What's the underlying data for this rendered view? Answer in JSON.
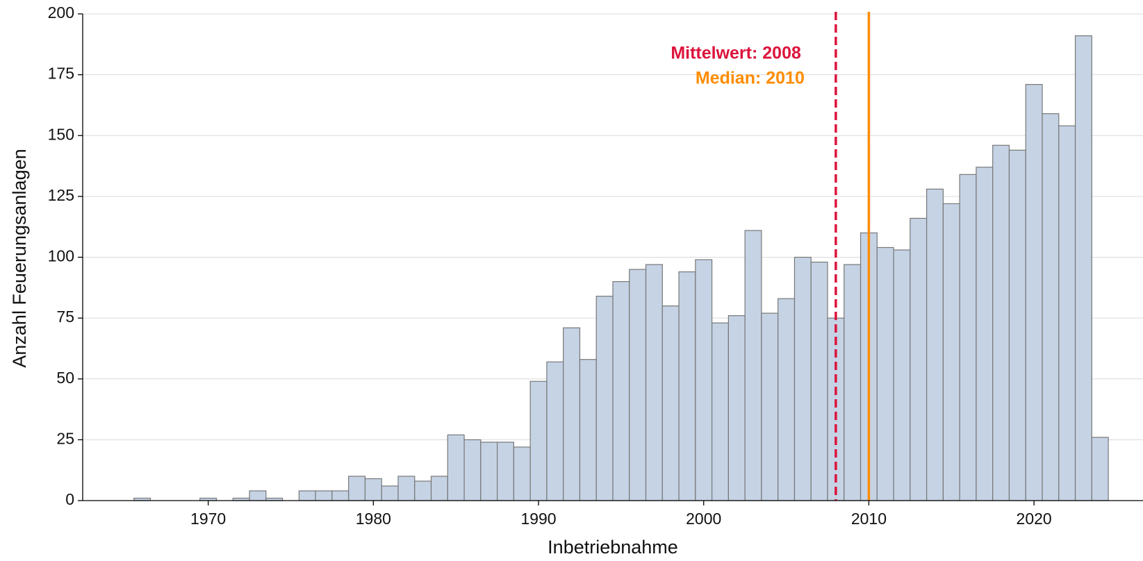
{
  "chart_data": {
    "type": "histogram",
    "xlabel": "Inbetriebnahme",
    "ylabel": "Anzahl Feuerungsanlagen",
    "bins": [
      1965.5,
      1966.5,
      1967.5,
      1968.5,
      1969.5,
      1970.5,
      1971.5,
      1972.5,
      1973.5,
      1974.5,
      1975.5,
      1976.5,
      1977.5,
      1978.5,
      1979.5,
      1980.5,
      1981.5,
      1982.5,
      1983.5,
      1984.5,
      1985.5,
      1986.5,
      1987.5,
      1988.5,
      1989.5,
      1990.5,
      1991.5,
      1992.5,
      1993.5,
      1994.5,
      1995.5,
      1996.5,
      1997.5,
      1998.5,
      1999.5,
      2000.5,
      2001.5,
      2002.5,
      2003.5,
      2004.5,
      2005.5,
      2006.5,
      2007.5,
      2008.5,
      2009.5,
      2010.5,
      2011.5,
      2012.5,
      2013.5,
      2014.5,
      2015.5,
      2016.5,
      2017.5,
      2018.5,
      2019.5,
      2020.5,
      2021.5,
      2022.5,
      2023.5,
      2024.5
    ],
    "values": [
      1,
      0,
      0,
      0,
      1,
      0,
      1,
      4,
      1,
      0,
      4,
      4,
      4,
      10,
      9,
      6,
      10,
      8,
      10,
      27,
      25,
      24,
      24,
      22,
      49,
      57,
      71,
      58,
      84,
      90,
      95,
      97,
      80,
      94,
      99,
      73,
      76,
      111,
      77,
      83,
      100,
      98,
      75,
      97,
      110,
      104,
      103,
      116,
      128,
      122,
      134,
      137,
      146,
      144,
      171,
      159,
      154,
      191,
      26
    ],
    "color": "#c5d3e5",
    "edgecolor": "#777777",
    "xlim": [
      1962.4,
      2026.6
    ],
    "xticks": [
      1970,
      1980,
      1990,
      2000,
      2010,
      2020
    ],
    "ylim": [
      0,
      200
    ],
    "yticks": [
      0,
      25,
      50,
      75,
      100,
      125,
      150,
      175,
      200
    ],
    "grid": true,
    "reference_lines": [
      {
        "label": "Mittelwert: 2008",
        "value": 2008,
        "color": "#dc143c",
        "style": "dashed"
      },
      {
        "label": "Median: 2010",
        "value": 2010,
        "color": "#ff8c00",
        "style": "solid"
      }
    ]
  }
}
